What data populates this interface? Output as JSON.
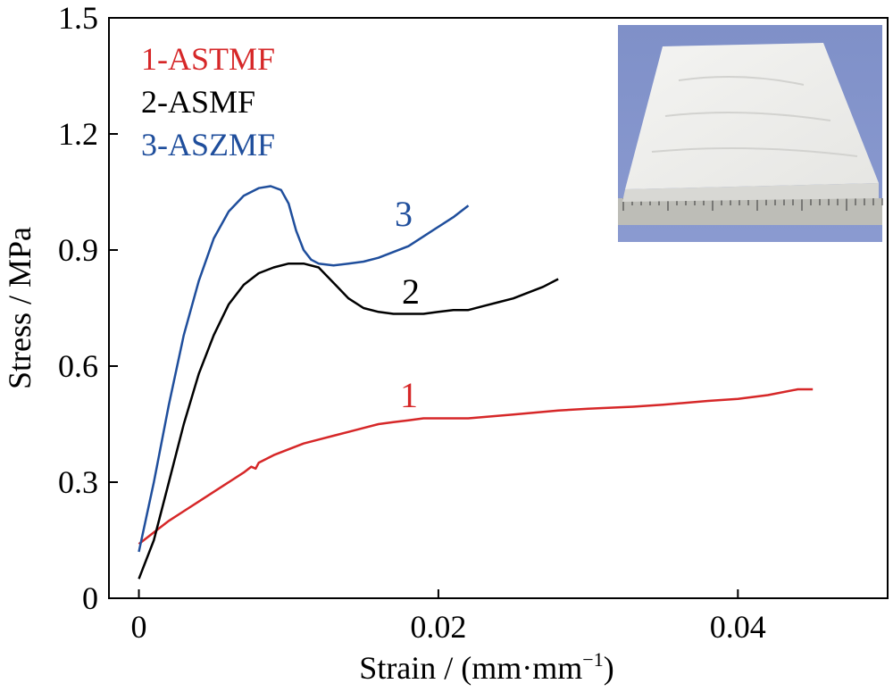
{
  "chart_data": {
    "type": "line",
    "xlabel": "Strain / (mm·mm",
    "xlabel_sup": "−1",
    "xlabel_close": ")",
    "ylabel": "Stress / MPa",
    "xlim": [
      -0.002,
      0.05
    ],
    "ylim": [
      0,
      1.5
    ],
    "xticks": [
      0,
      0.02,
      0.04
    ],
    "xtick_labels": [
      "0",
      "0.02",
      "0.04"
    ],
    "yticks": [
      0,
      0.3,
      0.6,
      0.9,
      1.2,
      1.5
    ],
    "ytick_labels": [
      "0",
      "0.3",
      "0.6",
      "0.9",
      "1.2",
      "1.5"
    ],
    "grid": false,
    "legend_position": "top-left",
    "inset_image": "photo of white fibrous mat on a ruler, top-right",
    "series": [
      {
        "name": "1-ASTMF",
        "curve_label": "1",
        "color": "#d62728",
        "x": [
          0,
          0.001,
          0.002,
          0.003,
          0.004,
          0.005,
          0.006,
          0.007,
          0.0075,
          0.0078,
          0.008,
          0.009,
          0.01,
          0.011,
          0.012,
          0.013,
          0.014,
          0.015,
          0.016,
          0.017,
          0.018,
          0.019,
          0.02,
          0.022,
          0.025,
          0.028,
          0.03,
          0.033,
          0.035,
          0.038,
          0.04,
          0.042,
          0.044,
          0.045
        ],
        "y": [
          0.14,
          0.17,
          0.2,
          0.225,
          0.25,
          0.275,
          0.3,
          0.325,
          0.34,
          0.335,
          0.35,
          0.37,
          0.385,
          0.4,
          0.41,
          0.42,
          0.43,
          0.44,
          0.45,
          0.455,
          0.46,
          0.465,
          0.465,
          0.465,
          0.475,
          0.485,
          0.49,
          0.495,
          0.5,
          0.51,
          0.515,
          0.525,
          0.54,
          0.54
        ]
      },
      {
        "name": "2-ASMF",
        "curve_label": "2",
        "color": "#000000",
        "x": [
          0,
          0.001,
          0.002,
          0.003,
          0.004,
          0.005,
          0.006,
          0.007,
          0.008,
          0.009,
          0.01,
          0.011,
          0.012,
          0.013,
          0.014,
          0.015,
          0.016,
          0.017,
          0.018,
          0.019,
          0.02,
          0.021,
          0.022,
          0.023,
          0.024,
          0.025,
          0.026,
          0.027,
          0.028
        ],
        "y": [
          0.05,
          0.15,
          0.3,
          0.45,
          0.58,
          0.68,
          0.76,
          0.81,
          0.84,
          0.855,
          0.865,
          0.865,
          0.855,
          0.815,
          0.775,
          0.75,
          0.74,
          0.735,
          0.735,
          0.735,
          0.74,
          0.745,
          0.745,
          0.755,
          0.765,
          0.775,
          0.79,
          0.805,
          0.825
        ]
      },
      {
        "name": "3-ASZMF",
        "curve_label": "3",
        "color": "#1f4e9c",
        "x": [
          0,
          0.001,
          0.002,
          0.003,
          0.004,
          0.005,
          0.006,
          0.007,
          0.008,
          0.0088,
          0.0095,
          0.01,
          0.0105,
          0.011,
          0.0115,
          0.012,
          0.013,
          0.014,
          0.015,
          0.016,
          0.017,
          0.018,
          0.019,
          0.02,
          0.021,
          0.022
        ],
        "y": [
          0.12,
          0.3,
          0.5,
          0.68,
          0.82,
          0.93,
          1.0,
          1.04,
          1.06,
          1.065,
          1.055,
          1.02,
          0.95,
          0.9,
          0.875,
          0.865,
          0.86,
          0.865,
          0.87,
          0.88,
          0.895,
          0.91,
          0.935,
          0.96,
          0.985,
          1.015
        ]
      }
    ]
  }
}
